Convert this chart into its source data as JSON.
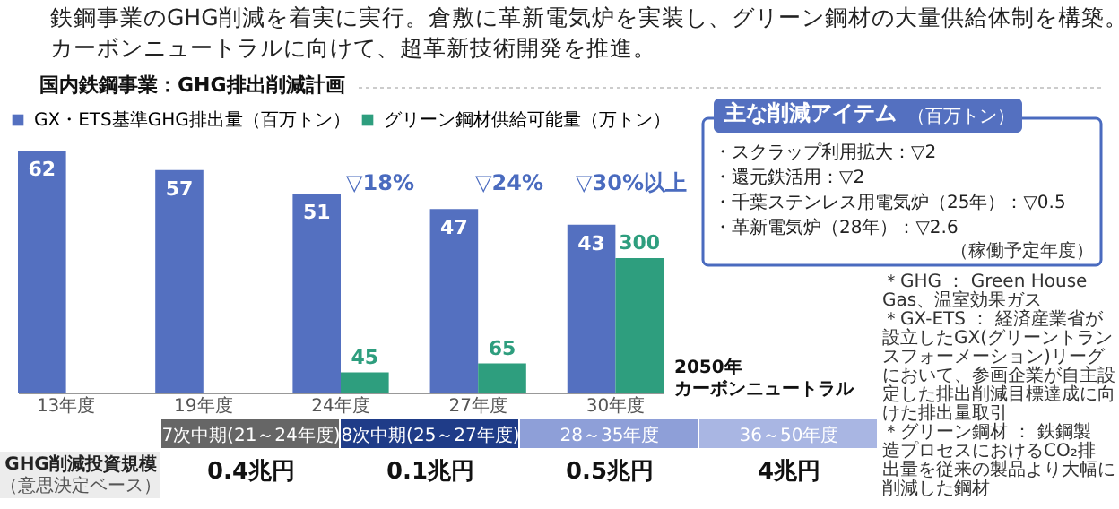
{
  "chart_data": {
    "type": "bar",
    "title": "鉄鋼事業のGHG削減を着実に実行。倉敷に革新電気炉を実装し、グリーン鋼材の大量供給体制を構築。カーボンニュートラルに向けて、超革新技術開発を推進。",
    "subtitle": "国内鉄鋼事業：GHG排出削減計画",
    "categories": [
      "13年度",
      "19年度",
      "24年度",
      "27年度",
      "30年度"
    ],
    "series": [
      {
        "name": "GX・ETS基準GHG排出量（百万トン）",
        "color": "#5470c0",
        "values": [
          62,
          57,
          51,
          47,
          43
        ]
      },
      {
        "name": "グリーン鋼材供給可能量（万トン）",
        "color": "#2e9e7e",
        "values": [
          null,
          null,
          45,
          65,
          300
        ],
        "axis": "y2"
      }
    ],
    "data_labels": true,
    "legend": "top left",
    "tick_labels": "x",
    "grid": false,
    "annotations": [
      "▽18%",
      "▽24%",
      "▽30%以上",
      "主な削減アイテム",
      "（百万トン）",
      "・スクラップ利用拡大：▽2",
      "・還元鉄活用：▽2",
      "・千葉ステンレス用電気炉（25年）：▽0.5",
      "・革新電気炉（28年）：▽2.6",
      "（稼働予定年度）",
      "2050年",
      "カーボンニュートラル",
      "＊GHG ： Green House Gas、温室効果ガス",
      "＊GX-ETS ： 経済産業省が設立したGX(グリーントランスフォーメーション)リーグにおいて、参画企業が自主設定した排出削減目標達成に向けた排出量取引",
      "＊グリーン鋼材 ： 鉄鋼製造プロセスにおけるCO₂排出量を従来の製品より大幅に削減した鋼材",
      "7次中期(21～24年度)",
      "8次中期(25～27年度)",
      "28～35年度",
      "36～50年度",
      "GHG削減投資規模",
      "（意思決定ベース）",
      "0.4兆円",
      "0.1兆円",
      "0.5兆円",
      "4兆円"
    ]
  }
}
